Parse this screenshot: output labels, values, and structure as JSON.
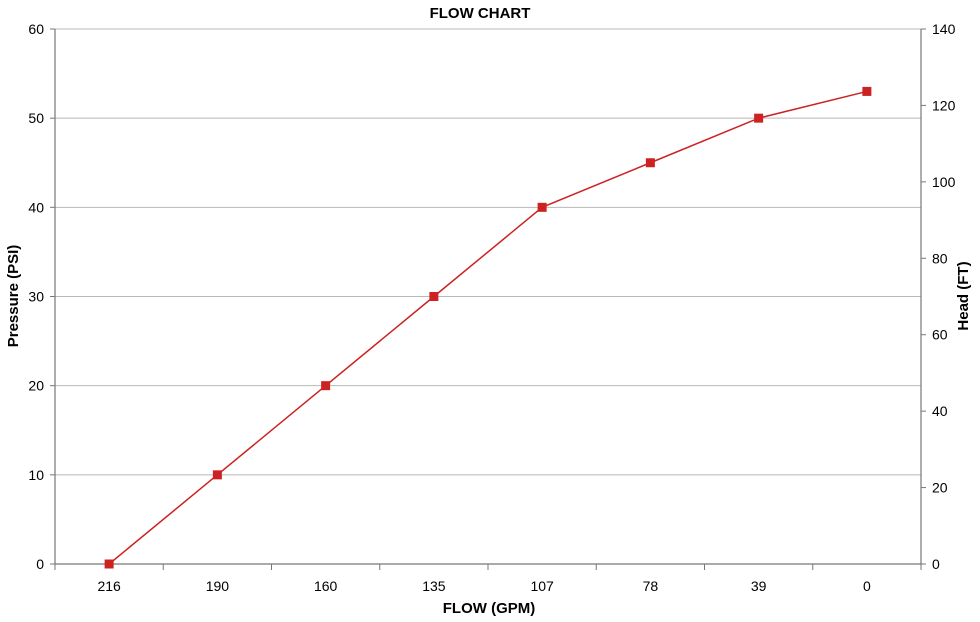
{
  "chart_data": {
    "type": "line",
    "title": "FLOW CHART",
    "xlabel": "FLOW (GPM)",
    "ylabel": "Pressure (PSI)",
    "y2label": "Head (FT)",
    "categories": [
      "216",
      "190",
      "160",
      "135",
      "107",
      "78",
      "39",
      "0"
    ],
    "series": [
      {
        "values": [
          0,
          10,
          20,
          30,
          40,
          45,
          50,
          53
        ],
        "color": "#cc2222",
        "marker": "square"
      }
    ],
    "ylim": [
      0,
      60
    ],
    "yticks": [
      0,
      10,
      20,
      30,
      40,
      50,
      60
    ],
    "y2lim": [
      0,
      140
    ],
    "y2ticks": [
      0,
      20,
      40,
      60,
      80,
      100,
      120,
      140
    ],
    "grid": true,
    "legend": "none"
  }
}
